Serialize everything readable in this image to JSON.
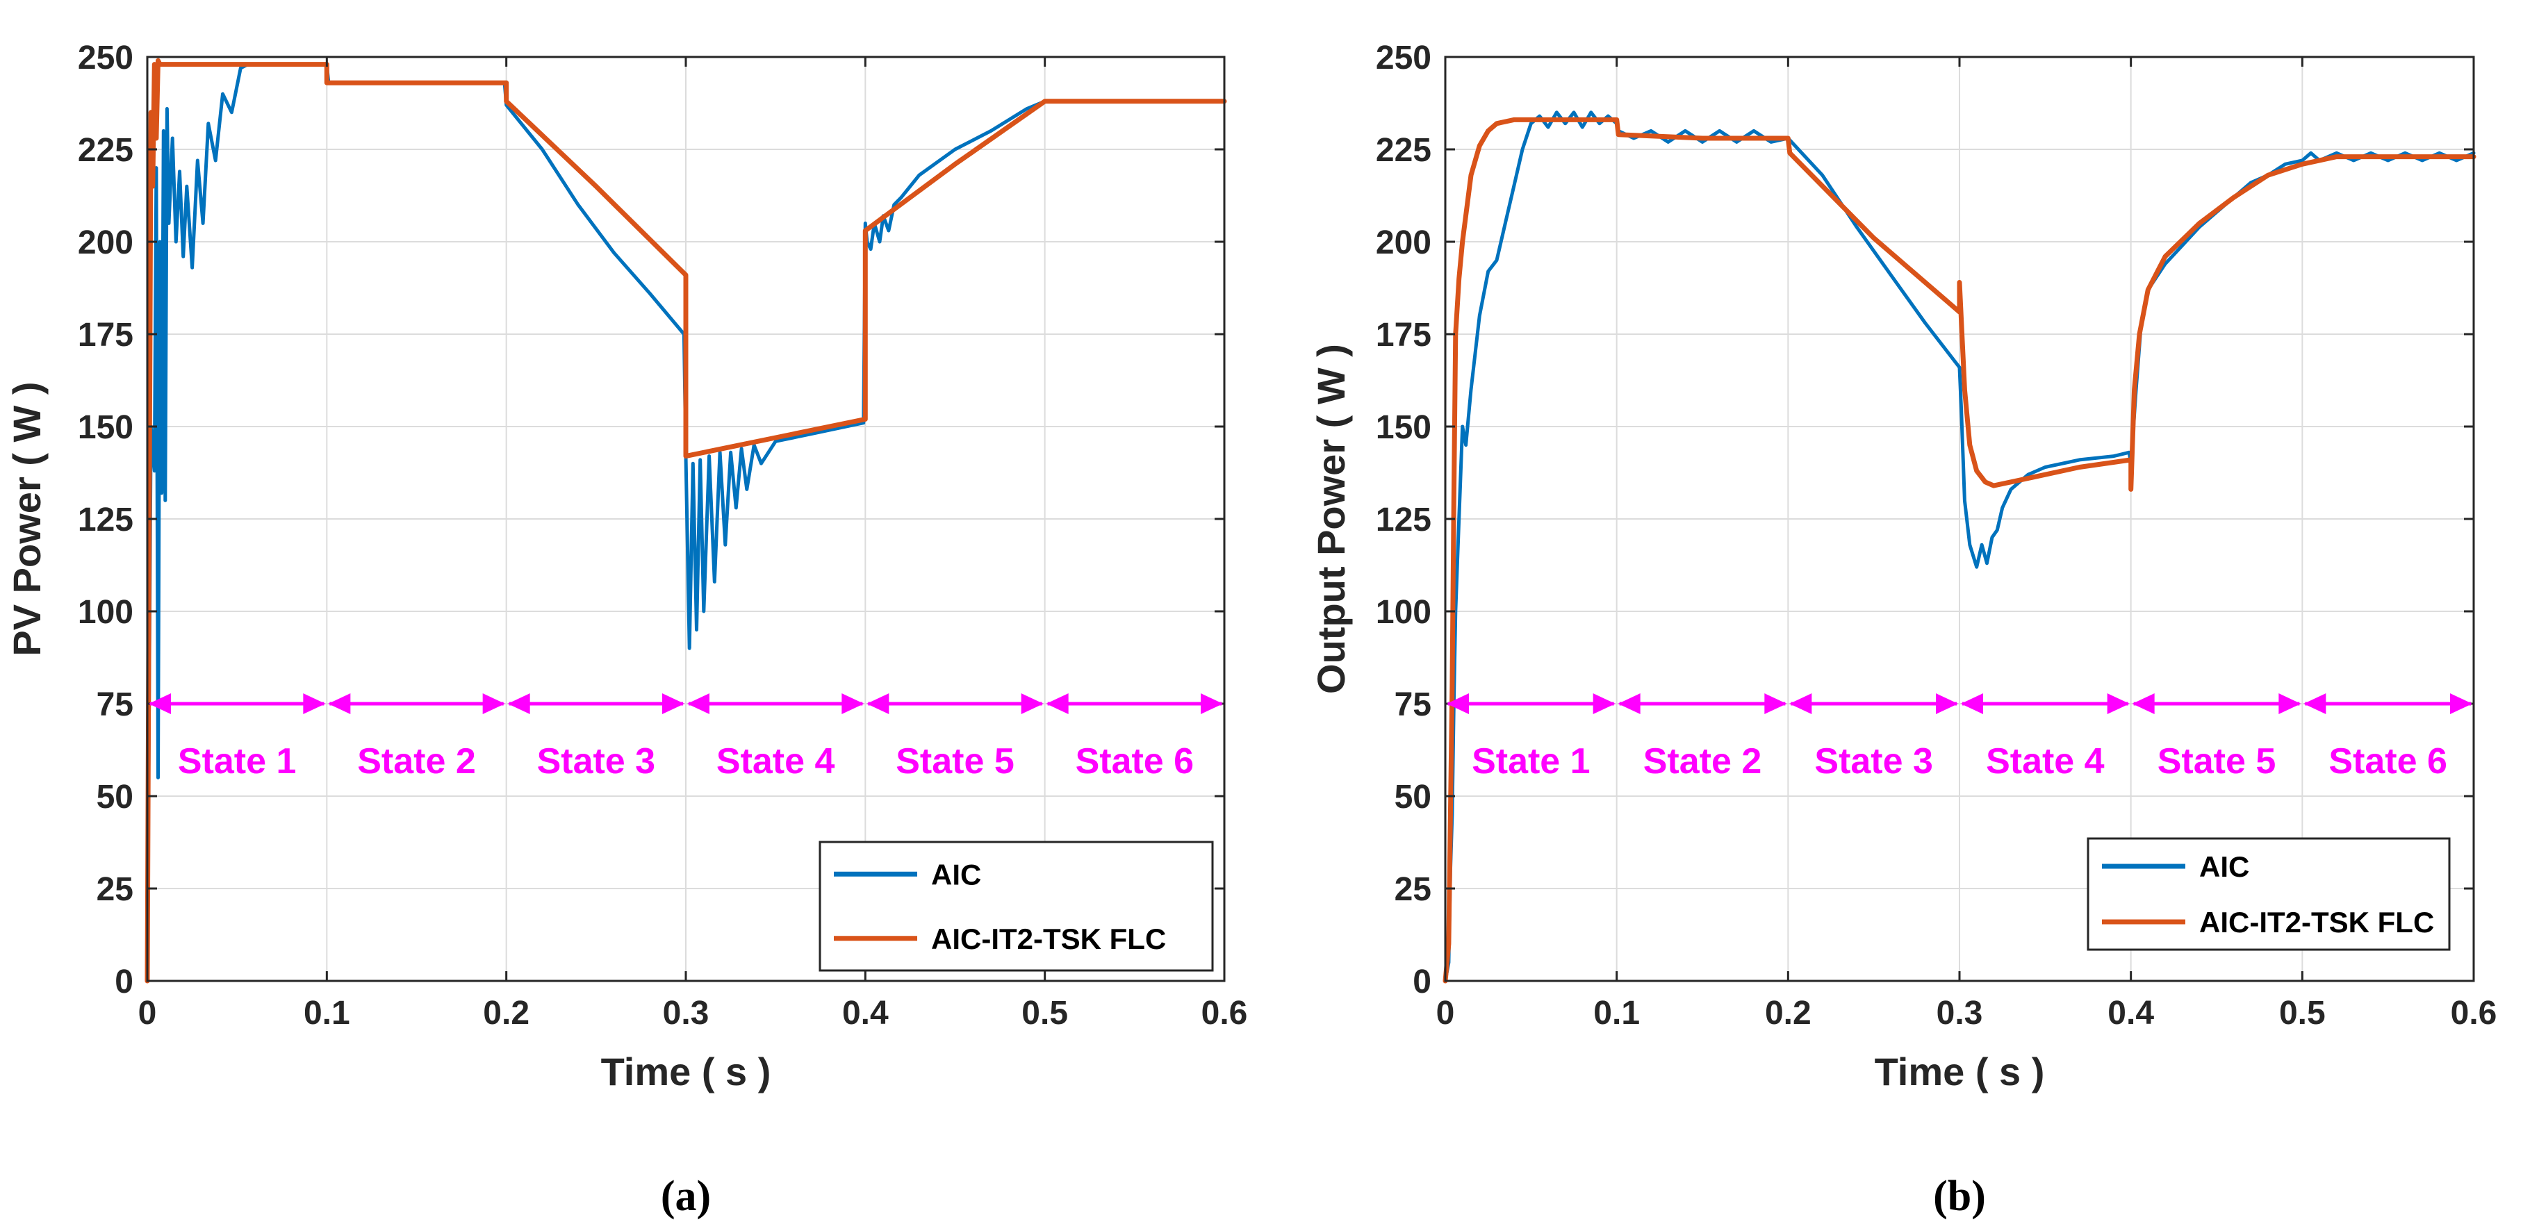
{
  "chart_data": [
    {
      "type": "line",
      "panel_label": "(a)",
      "title": "",
      "xlabel": "Time ( s )",
      "ylabel": "PV Power ( W )",
      "xlim": [
        0,
        0.6
      ],
      "ylim": [
        0,
        250
      ],
      "xticks": [
        "0",
        "0.1",
        "0.2",
        "0.3",
        "0.4",
        "0.5",
        "0.6"
      ],
      "yticks": [
        "0",
        "25",
        "50",
        "75",
        "100",
        "125",
        "150",
        "175",
        "200",
        "225",
        "250"
      ],
      "grid": true,
      "legend_position": "bottom-right",
      "state_arrow_y": 75,
      "states": [
        {
          "label": "State 1",
          "from": 0.0,
          "to": 0.1
        },
        {
          "label": "State 2",
          "from": 0.1,
          "to": 0.2
        },
        {
          "label": "State 3",
          "from": 0.2,
          "to": 0.3
        },
        {
          "label": "State 4",
          "from": 0.3,
          "to": 0.4
        },
        {
          "label": "State 5",
          "from": 0.4,
          "to": 0.5
        },
        {
          "label": "State 6",
          "from": 0.5,
          "to": 0.6
        }
      ],
      "series": [
        {
          "name": "AIC",
          "color": "#0072bd",
          "x": [
            0,
            0.002,
            0.004,
            0.005,
            0.006,
            0.007,
            0.008,
            0.009,
            0.01,
            0.011,
            0.012,
            0.014,
            0.016,
            0.018,
            0.02,
            0.022,
            0.025,
            0.028,
            0.031,
            0.034,
            0.038,
            0.042,
            0.047,
            0.052,
            0.056,
            0.06,
            0.08,
            0.1,
            0.101,
            0.15,
            0.199,
            0.2,
            0.22,
            0.24,
            0.26,
            0.28,
            0.299,
            0.3,
            0.302,
            0.304,
            0.306,
            0.308,
            0.31,
            0.313,
            0.316,
            0.319,
            0.322,
            0.325,
            0.328,
            0.331,
            0.334,
            0.338,
            0.342,
            0.35,
            0.37,
            0.399,
            0.4,
            0.401,
            0.403,
            0.405,
            0.408,
            0.41,
            0.413,
            0.416,
            0.42,
            0.43,
            0.45,
            0.47,
            0.49,
            0.5,
            0.52,
            0.55,
            0.6
          ],
          "y": [
            0,
            150,
            138,
            220,
            55,
            200,
            132,
            230,
            130,
            236,
            205,
            228,
            200,
            219,
            196,
            215,
            193,
            222,
            205,
            232,
            222,
            240,
            235,
            247,
            248,
            248,
            248,
            248,
            243,
            243,
            243,
            237,
            225,
            210,
            197,
            186,
            175,
            142,
            90,
            140,
            95,
            141,
            100,
            142,
            108,
            143,
            118,
            143,
            128,
            144,
            133,
            145,
            140,
            146,
            148,
            151,
            205,
            200,
            198,
            205,
            200,
            207,
            203,
            210,
            212,
            218,
            225,
            230,
            236,
            238,
            238,
            238,
            238
          ]
        },
        {
          "name": "AIC-IT2-TSK FLC",
          "color": "#d95319",
          "x": [
            0,
            0.002,
            0.003,
            0.004,
            0.005,
            0.006,
            0.007,
            0.1,
            0.1,
            0.2,
            0.2,
            0.25,
            0.3,
            0.3,
            0.35,
            0.4,
            0.4,
            0.45,
            0.5,
            0.55,
            0.6
          ],
          "y": [
            0,
            235,
            215,
            248,
            228,
            249,
            248,
            248,
            243,
            243,
            238,
            215,
            191,
            142,
            147,
            152,
            203,
            221,
            238,
            238,
            238
          ]
        }
      ]
    },
    {
      "type": "line",
      "panel_label": "(b)",
      "title": "",
      "xlabel": "Time ( s )",
      "ylabel": "Output Power ( W )",
      "xlim": [
        0,
        0.6
      ],
      "ylim": [
        0,
        250
      ],
      "xticks": [
        "0",
        "0.1",
        "0.2",
        "0.3",
        "0.4",
        "0.5",
        "0.6"
      ],
      "yticks": [
        "0",
        "25",
        "50",
        "75",
        "100",
        "125",
        "150",
        "175",
        "200",
        "225",
        "250"
      ],
      "grid": true,
      "legend_position": "bottom-right",
      "state_arrow_y": 75,
      "states": [
        {
          "label": "State 1",
          "from": 0.0,
          "to": 0.1
        },
        {
          "label": "State 2",
          "from": 0.1,
          "to": 0.2
        },
        {
          "label": "State 3",
          "from": 0.2,
          "to": 0.3
        },
        {
          "label": "State 4",
          "from": 0.3,
          "to": 0.4
        },
        {
          "label": "State 5",
          "from": 0.4,
          "to": 0.5
        },
        {
          "label": "State 6",
          "from": 0.5,
          "to": 0.6
        }
      ],
      "series": [
        {
          "name": "AIC",
          "color": "#0072bd",
          "x": [
            0,
            0.002,
            0.003,
            0.004,
            0.005,
            0.006,
            0.008,
            0.01,
            0.012,
            0.015,
            0.02,
            0.025,
            0.03,
            0.035,
            0.04,
            0.045,
            0.05,
            0.055,
            0.06,
            0.065,
            0.07,
            0.075,
            0.08,
            0.085,
            0.09,
            0.095,
            0.1,
            0.101,
            0.11,
            0.12,
            0.13,
            0.14,
            0.15,
            0.16,
            0.17,
            0.18,
            0.19,
            0.2,
            0.22,
            0.24,
            0.26,
            0.28,
            0.3,
            0.301,
            0.303,
            0.306,
            0.31,
            0.313,
            0.316,
            0.319,
            0.322,
            0.325,
            0.33,
            0.335,
            0.34,
            0.35,
            0.37,
            0.39,
            0.399,
            0.4,
            0.403,
            0.406,
            0.41,
            0.42,
            0.43,
            0.44,
            0.45,
            0.46,
            0.47,
            0.48,
            0.49,
            0.5,
            0.505,
            0.51,
            0.52,
            0.53,
            0.54,
            0.55,
            0.56,
            0.57,
            0.58,
            0.59,
            0.6
          ],
          "y": [
            0,
            5,
            30,
            45,
            75,
            100,
            125,
            150,
            145,
            160,
            180,
            192,
            195,
            205,
            215,
            225,
            232,
            234,
            231,
            235,
            232,
            235,
            231,
            235,
            232,
            234,
            232,
            230,
            228,
            230,
            227,
            230,
            227,
            230,
            227,
            230,
            227,
            228,
            218,
            204,
            191,
            178,
            166,
            155,
            130,
            118,
            112,
            118,
            113,
            120,
            122,
            128,
            133,
            135,
            137,
            139,
            141,
            142,
            143,
            140,
            160,
            178,
            187,
            194,
            199,
            204,
            208,
            212,
            216,
            218,
            221,
            222,
            224,
            222,
            224,
            222,
            224,
            222,
            224,
            222,
            224,
            222,
            224
          ]
        },
        {
          "name": "AIC-IT2-TSK FLC",
          "color": "#d95319",
          "x": [
            0,
            0.002,
            0.004,
            0.005,
            0.006,
            0.008,
            0.01,
            0.015,
            0.02,
            0.025,
            0.03,
            0.04,
            0.06,
            0.1,
            0.101,
            0.15,
            0.2,
            0.201,
            0.25,
            0.3,
            0.3,
            0.303,
            0.306,
            0.31,
            0.315,
            0.32,
            0.33,
            0.35,
            0.37,
            0.4,
            0.4,
            0.402,
            0.405,
            0.41,
            0.42,
            0.44,
            0.46,
            0.48,
            0.5,
            0.52,
            0.6
          ],
          "y": [
            0,
            10,
            80,
            130,
            175,
            190,
            200,
            218,
            226,
            230,
            232,
            233,
            233,
            233,
            229,
            228,
            228,
            224,
            201,
            181,
            189,
            160,
            145,
            138,
            135,
            134,
            135,
            137,
            139,
            141,
            133,
            160,
            175,
            187,
            196,
            205,
            212,
            218,
            221,
            223,
            223
          ]
        }
      ]
    }
  ]
}
